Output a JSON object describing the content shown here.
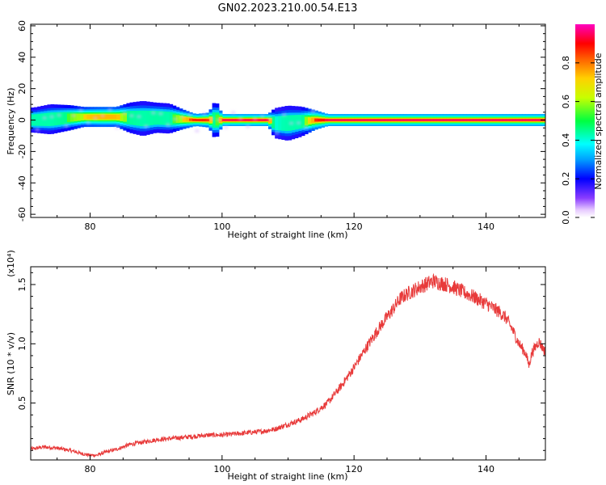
{
  "title": "GN02.2023.210.00.54.E13",
  "chart_data": [
    {
      "type": "heatmap",
      "xlabel": "Height of straight line (km)",
      "ylabel": "Frequency (Hz)",
      "xlim": [
        71,
        149
      ],
      "ylim": [
        -62,
        61
      ],
      "xticks": [
        80,
        100,
        120,
        140
      ],
      "yticks": [
        -60,
        -40,
        -20,
        0,
        20,
        40,
        60
      ],
      "grid": false,
      "colorbar": {
        "label": "Normalized spectral amplitude",
        "range": [
          0,
          1
        ],
        "ticks": [
          "0.0",
          "0.2",
          "0.4",
          "0.6",
          "0.8"
        ]
      },
      "ridge": {
        "description_values": "centre frequency (Hz) and relative strength along height",
        "height": [
          71.5,
          74,
          77,
          79,
          80,
          82,
          84,
          86,
          88,
          90,
          92,
          94,
          96,
          98,
          99,
          100,
          105,
          107,
          108,
          110,
          112,
          114,
          116,
          130,
          149
        ],
        "freq": [
          0,
          0.5,
          1.5,
          2,
          2,
          2,
          2,
          1.5,
          1,
          1.5,
          1,
          0.5,
          0,
          0,
          0,
          0,
          0,
          0,
          -2,
          -2,
          -1,
          0,
          0,
          0,
          0
        ],
        "strength": [
          0.45,
          0.45,
          0.55,
          0.7,
          0.75,
          0.8,
          0.78,
          0.5,
          0.45,
          0.48,
          0.45,
          0.7,
          0.92,
          0.85,
          0.4,
          0.97,
          0.97,
          0.95,
          0.4,
          0.45,
          0.45,
          0.85,
          0.97,
          0.98,
          0.98
        ],
        "spread_hz": [
          2.5,
          3,
          2.5,
          2,
          2,
          2,
          2,
          3,
          3.5,
          3,
          3,
          2,
          1.2,
          1.5,
          4,
          1.2,
          1.2,
          1.2,
          3,
          3.5,
          3,
          2,
          1.2,
          1.2,
          1.2
        ]
      }
    },
    {
      "type": "line",
      "xlabel": "Height of straight line (km)",
      "ylabel": "SNR (10 * v/v)",
      "y_scale_label": "(x10⁴)",
      "xlim": [
        71,
        149
      ],
      "ylim": [
        0.02,
        1.65
      ],
      "xticks": [
        80,
        100,
        120,
        140
      ],
      "yticks": [
        0.5,
        1.0,
        1.5
      ],
      "ytick_labels": [
        "0.5",
        "1.0",
        "1.5"
      ],
      "color": "#e83a3a",
      "grid": false,
      "series": [
        {
          "x": [
            71,
            73,
            75,
            77,
            79,
            80,
            81,
            82,
            84,
            86,
            88,
            90,
            92,
            94,
            96,
            98,
            100,
            102,
            104,
            106,
            108,
            110,
            112,
            114,
            116,
            118,
            120,
            122,
            124,
            126,
            127,
            128,
            130,
            132,
            134,
            135,
            136,
            138,
            140,
            142,
            143,
            144,
            145,
            146,
            146.5,
            147,
            148,
            149
          ],
          "y": [
            0.11,
            0.13,
            0.12,
            0.1,
            0.07,
            0.06,
            0.06,
            0.08,
            0.11,
            0.15,
            0.17,
            0.19,
            0.2,
            0.21,
            0.22,
            0.23,
            0.23,
            0.24,
            0.25,
            0.26,
            0.28,
            0.32,
            0.36,
            0.42,
            0.5,
            0.64,
            0.8,
            0.98,
            1.15,
            1.3,
            1.38,
            1.42,
            1.48,
            1.53,
            1.5,
            1.48,
            1.45,
            1.4,
            1.34,
            1.27,
            1.22,
            1.12,
            1.0,
            0.92,
            0.82,
            0.93,
            1.02,
            0.93
          ]
        }
      ]
    }
  ]
}
